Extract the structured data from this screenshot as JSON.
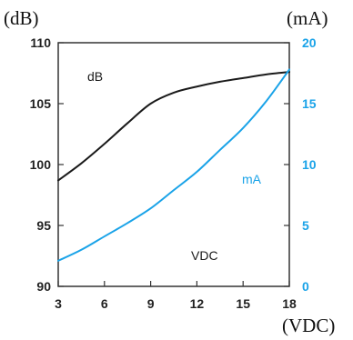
{
  "chart_data": {
    "type": "line",
    "left_unit": "(dB)",
    "right_unit": "(mA)",
    "x_unit": "(VDC)",
    "x": [
      3,
      4.5,
      6,
      7.5,
      9,
      10.5,
      12,
      13.5,
      15,
      16.5,
      18
    ],
    "xlim": [
      3,
      18
    ],
    "x_ticks": [
      "3",
      "6",
      "9",
      "12",
      "15",
      "18"
    ],
    "y_left_lim": [
      90,
      110
    ],
    "y_left_ticks": [
      "90",
      "95",
      "100",
      "105",
      "110"
    ],
    "y_right_lim": [
      0,
      20
    ],
    "y_right_ticks": [
      "0",
      "5",
      "10",
      "15",
      "20"
    ],
    "grid": false,
    "series": [
      {
        "name": "dB",
        "axis": "left",
        "color": "#1a1a1a",
        "values": [
          98.7,
          100.1,
          101.7,
          103.4,
          105.0,
          105.9,
          106.4,
          106.8,
          107.1,
          107.4,
          107.6
        ]
      },
      {
        "name": "mA",
        "axis": "right",
        "color": "#1aa3e8",
        "values": [
          2.1,
          3.0,
          4.1,
          5.2,
          6.4,
          7.9,
          9.4,
          11.2,
          13.0,
          15.2,
          17.8
        ]
      }
    ],
    "annotations": [
      {
        "text": "dB",
        "color": "#1a1a1a"
      },
      {
        "text": "mA",
        "color": "#1aa3e8"
      },
      {
        "text": "VDC",
        "color": "#1a1a1a"
      }
    ]
  }
}
